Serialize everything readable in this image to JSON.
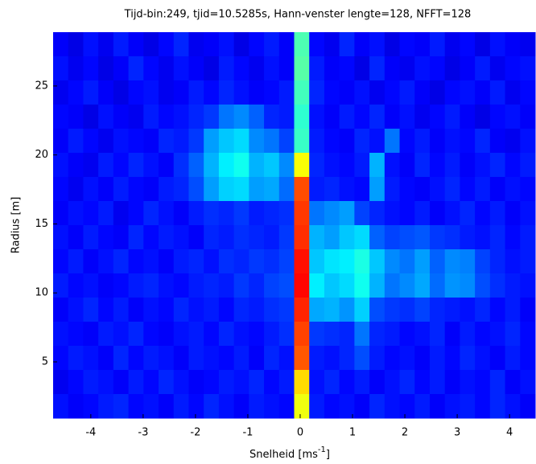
{
  "chart_data": {
    "type": "heatmap",
    "title": "Tijd-bin:249, tjid=10.5285s, Hann-venster lengte=128, NFFT=128",
    "xlabel": {
      "text": "Snelheid [ms",
      "superscript": "-1",
      "suffix": "]"
    },
    "ylabel": "Radius [m]",
    "xlim": [
      -4.72,
      4.49
    ],
    "ylim": [
      0.92,
      28.9
    ],
    "xticks": [
      -4,
      -3,
      -2,
      -1,
      0,
      1,
      2,
      3,
      4
    ],
    "yticks": [
      5,
      10,
      15,
      20,
      25
    ],
    "colormap": "jet",
    "zlim": [
      0,
      10
    ],
    "z": [
      [
        1.2,
        1.0,
        1.4,
        1.1,
        1.5,
        1.2,
        1.0,
        1.3,
        1.6,
        1.1,
        1.2,
        1.4,
        1.0,
        1.3,
        1.5,
        1.2,
        4.5,
        1.3,
        1.1,
        1.6,
        1.2,
        1.4,
        1.0,
        1.3,
        1.2,
        1.5,
        1.1,
        1.3,
        1.0,
        1.4,
        1.2,
        1.1
      ],
      [
        1.4,
        1.1,
        1.3,
        1.0,
        1.2,
        1.6,
        1.3,
        1.1,
        1.4,
        1.2,
        1.0,
        1.5,
        1.3,
        1.1,
        1.4,
        1.2,
        4.6,
        1.5,
        1.2,
        1.3,
        1.0,
        1.6,
        1.2,
        1.1,
        1.4,
        1.3,
        1.0,
        1.2,
        1.5,
        1.1,
        1.3,
        1.4
      ],
      [
        1.1,
        1.3,
        1.5,
        1.2,
        1.0,
        1.3,
        1.4,
        1.1,
        1.2,
        1.5,
        1.3,
        1.6,
        1.4,
        1.2,
        1.3,
        1.5,
        4.4,
        1.6,
        1.3,
        1.2,
        1.4,
        1.1,
        1.3,
        1.5,
        1.2,
        1.0,
        1.3,
        1.4,
        1.2,
        1.5,
        1.1,
        1.3
      ],
      [
        1.3,
        1.2,
        1.0,
        1.4,
        1.2,
        1.1,
        1.5,
        1.3,
        1.4,
        1.6,
        1.8,
        2.4,
        2.6,
        2.2,
        1.6,
        1.5,
        4.2,
        1.4,
        1.2,
        1.5,
        1.3,
        1.6,
        1.2,
        1.4,
        1.1,
        1.3,
        1.5,
        1.2,
        1.0,
        1.3,
        1.4,
        1.2
      ],
      [
        1.2,
        1.5,
        1.3,
        1.1,
        1.4,
        1.3,
        1.2,
        1.6,
        1.5,
        1.8,
        2.8,
        3.2,
        3.4,
        2.6,
        2.4,
        1.9,
        4.3,
        1.5,
        1.3,
        1.2,
        1.6,
        1.4,
        2.4,
        1.3,
        1.5,
        1.2,
        1.4,
        1.3,
        1.6,
        1.2,
        1.1,
        1.4
      ],
      [
        1.4,
        1.2,
        1.1,
        1.5,
        1.3,
        1.6,
        1.4,
        1.2,
        1.7,
        2.2,
        3.0,
        3.6,
        3.9,
        3.0,
        3.2,
        2.6,
        6.2,
        1.6,
        1.4,
        1.3,
        1.5,
        3.0,
        1.4,
        1.2,
        1.6,
        1.3,
        1.5,
        1.2,
        1.4,
        1.6,
        1.3,
        1.5
      ],
      [
        1.3,
        1.1,
        1.4,
        1.2,
        1.5,
        1.3,
        1.2,
        1.5,
        1.6,
        2.0,
        2.8,
        3.3,
        3.4,
        2.8,
        2.9,
        2.3,
        8.0,
        1.5,
        1.6,
        1.4,
        1.3,
        2.8,
        1.5,
        1.3,
        1.2,
        1.4,
        1.6,
        1.3,
        1.5,
        1.2,
        1.4,
        1.3
      ],
      [
        1.2,
        1.4,
        1.3,
        1.5,
        1.1,
        1.3,
        1.6,
        1.4,
        1.2,
        1.5,
        1.7,
        1.6,
        1.8,
        1.5,
        1.6,
        1.7,
        8.2,
        2.4,
        2.6,
        2.8,
        1.9,
        1.6,
        1.4,
        1.3,
        1.5,
        1.2,
        1.4,
        1.6,
        1.3,
        1.5,
        1.2,
        1.4
      ],
      [
        1.4,
        1.2,
        1.5,
        1.3,
        1.2,
        1.6,
        1.3,
        1.5,
        1.4,
        1.2,
        1.6,
        1.5,
        1.7,
        1.6,
        1.5,
        1.8,
        8.3,
        3.0,
        2.8,
        3.2,
        3.4,
        2.2,
        1.9,
        2.0,
        2.1,
        1.8,
        1.7,
        1.5,
        1.4,
        1.6,
        1.3,
        1.5
      ],
      [
        1.3,
        1.5,
        1.2,
        1.4,
        1.6,
        1.3,
        1.4,
        1.2,
        1.5,
        1.6,
        1.4,
        1.7,
        1.6,
        1.8,
        1.7,
        1.9,
        8.6,
        3.2,
        3.5,
        3.6,
        4.0,
        3.2,
        2.6,
        2.4,
        2.8,
        2.2,
        2.6,
        2.5,
        1.9,
        1.6,
        1.4,
        1.5
      ],
      [
        1.5,
        1.3,
        1.4,
        1.2,
        1.3,
        1.5,
        1.6,
        1.4,
        1.3,
        1.5,
        1.6,
        1.5,
        1.8,
        1.6,
        1.9,
        2.0,
        8.7,
        3.6,
        3.2,
        3.4,
        3.9,
        3.0,
        2.4,
        2.6,
        2.9,
        2.3,
        2.7,
        2.6,
        2.0,
        1.7,
        1.5,
        1.4
      ],
      [
        1.2,
        1.4,
        1.6,
        1.3,
        1.5,
        1.2,
        1.4,
        1.3,
        1.6,
        1.4,
        1.5,
        1.3,
        1.6,
        1.5,
        1.7,
        1.8,
        8.4,
        2.9,
        3.0,
        2.7,
        3.3,
        2.0,
        1.8,
        1.7,
        1.9,
        1.6,
        1.5,
        1.4,
        1.6,
        1.3,
        1.5,
        1.2
      ],
      [
        1.4,
        1.3,
        1.2,
        1.5,
        1.4,
        1.6,
        1.3,
        1.2,
        1.4,
        1.5,
        1.3,
        1.6,
        1.4,
        1.3,
        1.5,
        1.7,
        8.1,
        1.8,
        1.7,
        1.6,
        2.4,
        1.6,
        1.5,
        1.3,
        1.4,
        1.6,
        1.2,
        1.5,
        1.3,
        1.4,
        1.6,
        1.3
      ],
      [
        1.3,
        1.5,
        1.4,
        1.2,
        1.6,
        1.3,
        1.5,
        1.4,
        1.2,
        1.5,
        1.4,
        1.3,
        1.5,
        1.2,
        1.6,
        1.4,
        7.9,
        1.5,
        1.4,
        1.6,
        2.0,
        1.5,
        1.3,
        1.4,
        1.2,
        1.5,
        1.3,
        1.6,
        1.4,
        1.2,
        1.5,
        1.3
      ],
      [
        1.1,
        1.3,
        1.5,
        1.4,
        1.2,
        1.5,
        1.3,
        1.6,
        1.4,
        1.2,
        1.3,
        1.5,
        1.4,
        1.6,
        1.3,
        1.5,
        6.6,
        1.4,
        1.6,
        1.3,
        1.5,
        1.2,
        1.4,
        1.6,
        1.3,
        1.5,
        1.2,
        1.4,
        1.3,
        1.6,
        1.2,
        1.4
      ],
      [
        1.4,
        1.2,
        1.3,
        1.5,
        1.6,
        1.3,
        1.4,
        1.2,
        1.5,
        1.3,
        1.6,
        1.4,
        1.2,
        1.5,
        1.4,
        1.3,
        6.1,
        1.5,
        1.3,
        1.4,
        1.2,
        1.6,
        1.4,
        1.3,
        1.5,
        1.2,
        1.4,
        1.5,
        1.3,
        1.6,
        1.4,
        1.2
      ]
    ]
  }
}
